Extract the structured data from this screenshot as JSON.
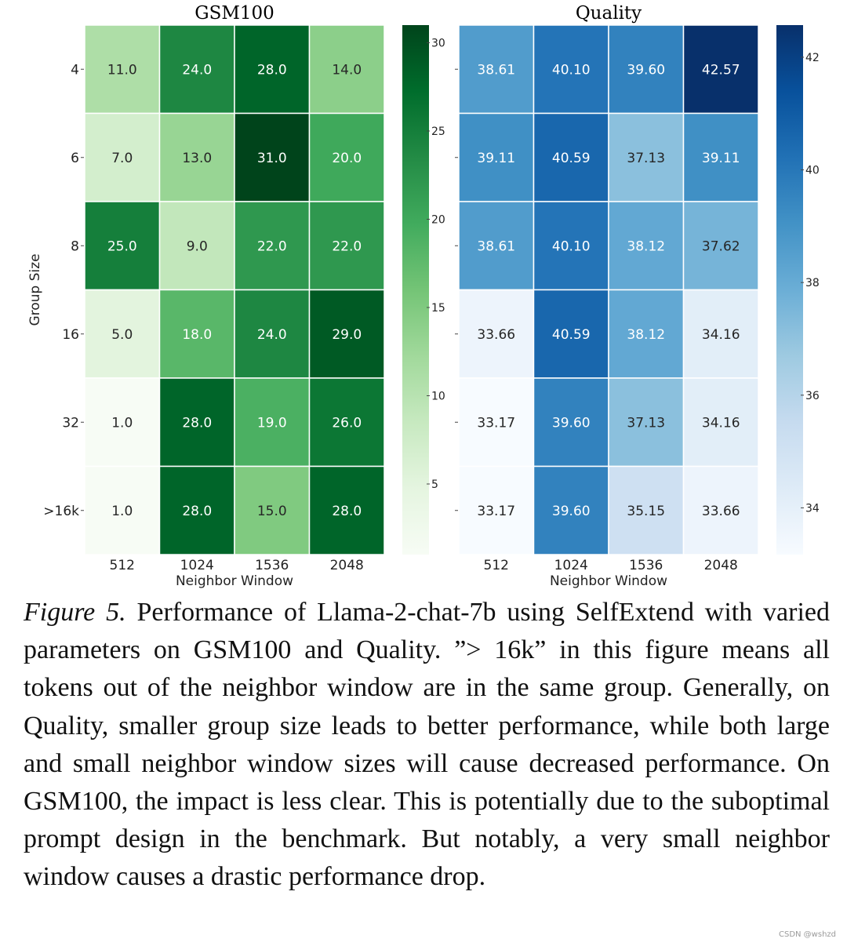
{
  "chart_data": [
    {
      "type": "heatmap",
      "title": "GSM100",
      "xlabel": "Neighbor Window",
      "ylabel": "Group Size",
      "x_categories": [
        "512",
        "1024",
        "1536",
        "2048"
      ],
      "y_categories": [
        "4",
        "6",
        "8",
        "16",
        "32",
        ">16k"
      ],
      "cell_labels": [
        [
          "11.0",
          "24.0",
          "28.0",
          "14.0"
        ],
        [
          "7.0",
          "13.0",
          "31.0",
          "20.0"
        ],
        [
          "25.0",
          "9.0",
          "22.0",
          "22.0"
        ],
        [
          "5.0",
          "18.0",
          "24.0",
          "29.0"
        ],
        [
          "1.0",
          "28.0",
          "19.0",
          "26.0"
        ],
        [
          "1.0",
          "28.0",
          "15.0",
          "28.0"
        ]
      ],
      "values": [
        [
          11,
          24,
          28,
          14
        ],
        [
          7,
          13,
          31,
          20
        ],
        [
          25,
          9,
          22,
          22
        ],
        [
          5,
          18,
          24,
          29
        ],
        [
          1,
          28,
          19,
          26
        ],
        [
          1,
          28,
          15,
          28
        ]
      ],
      "colormap": "Greens",
      "colorbar": {
        "range": [
          1,
          31
        ],
        "ticks": [
          5,
          10,
          15,
          20,
          25,
          30
        ]
      }
    },
    {
      "type": "heatmap",
      "title": "Quality",
      "xlabel": "Neighbor Window",
      "ylabel": "",
      "x_categories": [
        "512",
        "1024",
        "1536",
        "2048"
      ],
      "y_categories": [
        "4",
        "6",
        "8",
        "16",
        "32",
        ">16k"
      ],
      "cell_labels": [
        [
          "38.61",
          "40.10",
          "39.60",
          "42.57"
        ],
        [
          "39.11",
          "40.59",
          "37.13",
          "39.11"
        ],
        [
          "38.61",
          "40.10",
          "38.12",
          "37.62"
        ],
        [
          "33.66",
          "40.59",
          "38.12",
          "34.16"
        ],
        [
          "33.17",
          "39.60",
          "37.13",
          "34.16"
        ],
        [
          "33.17",
          "39.60",
          "35.15",
          "33.66"
        ]
      ],
      "values": [
        [
          38.61,
          40.1,
          39.6,
          42.57
        ],
        [
          39.11,
          40.59,
          37.13,
          39.11
        ],
        [
          38.61,
          40.1,
          38.12,
          37.62
        ],
        [
          33.66,
          40.59,
          38.12,
          34.16
        ],
        [
          33.17,
          39.6,
          37.13,
          34.16
        ],
        [
          33.17,
          39.6,
          35.15,
          33.66
        ]
      ],
      "colormap": "Blues",
      "colorbar": {
        "range": [
          33.17,
          42.57
        ],
        "ticks": [
          34,
          36,
          38,
          40,
          42
        ]
      }
    }
  ],
  "caption": {
    "label": "Figure 5.",
    "text": " Performance of Llama-2-chat-7b using SelfExtend with varied parameters on GSM100 and Quality. ”> 16k” in this figure means all tokens out of the neighbor window are in the same group. Generally, on Quality, smaller group size leads to better performance, while both large and small neighbor window sizes will cause decreased performance. On GSM100, the impact is less clear. This is potentially due to the suboptimal prompt design in the benchmark. But notably, a very small neighbor window causes a drastic performance drop."
  },
  "watermark": "CSDN @wshzd",
  "colors": {
    "greens": [
      "#f7fcf5",
      "#e5f5e0",
      "#c7e9c0",
      "#a1d99b",
      "#74c476",
      "#41ab5d",
      "#238b45",
      "#006d2c",
      "#00441b"
    ],
    "blues": [
      "#f7fbff",
      "#deebf7",
      "#c6dbef",
      "#9ecae1",
      "#6baed6",
      "#4292c6",
      "#2171b5",
      "#08519c",
      "#08306b"
    ]
  }
}
